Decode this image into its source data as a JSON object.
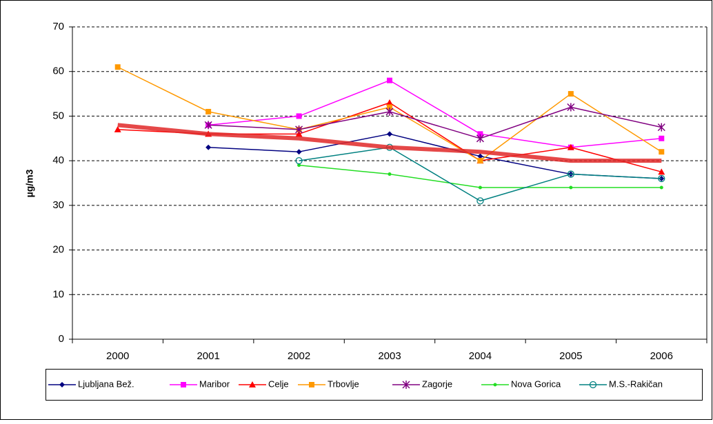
{
  "chart_data": {
    "type": "line",
    "y_label": "µg/m3",
    "categories": [
      "2000",
      "2001",
      "2002",
      "2003",
      "2004",
      "2005",
      "2006"
    ],
    "series": [
      {
        "name": "Ljubljana Bež.",
        "color": "#000080",
        "marker": "diamond",
        "values": [
          null,
          43,
          42,
          46,
          41,
          37,
          36
        ]
      },
      {
        "name": "Maribor",
        "color": "#ff00ff",
        "marker": "square",
        "values": [
          null,
          48,
          50,
          58,
          46,
          43,
          45
        ]
      },
      {
        "name": "Celje",
        "color": "#ff0000",
        "marker": "triangle",
        "values": [
          47,
          46,
          46,
          53,
          40,
          43,
          37.5
        ]
      },
      {
        "name": "Trbovlje",
        "color": "#ff9900",
        "marker": "square",
        "values": [
          61,
          51,
          47,
          52,
          40,
          55,
          42
        ]
      },
      {
        "name": "Zagorje",
        "color": "#800080",
        "marker": "asterisk",
        "values": [
          null,
          48,
          47,
          51,
          45,
          52,
          47.5
        ]
      },
      {
        "name": "Nova Gorica",
        "color": "#22dd22",
        "marker": "dot",
        "values": [
          null,
          null,
          39,
          37,
          34,
          34,
          34
        ]
      },
      {
        "name": "M.S.-Rakičan",
        "color": "#008080",
        "marker": "circle",
        "values": [
          null,
          null,
          40,
          43,
          31,
          37,
          36
        ]
      },
      {
        "color": "#e02828",
        "marker": "none",
        "width": 6,
        "values": [
          48,
          46,
          45,
          43,
          42,
          40,
          40
        ]
      }
    ],
    "ylim": [
      0,
      70
    ],
    "yticks": [
      0,
      10,
      20,
      30,
      40,
      50,
      60,
      70
    ],
    "grid": true
  }
}
